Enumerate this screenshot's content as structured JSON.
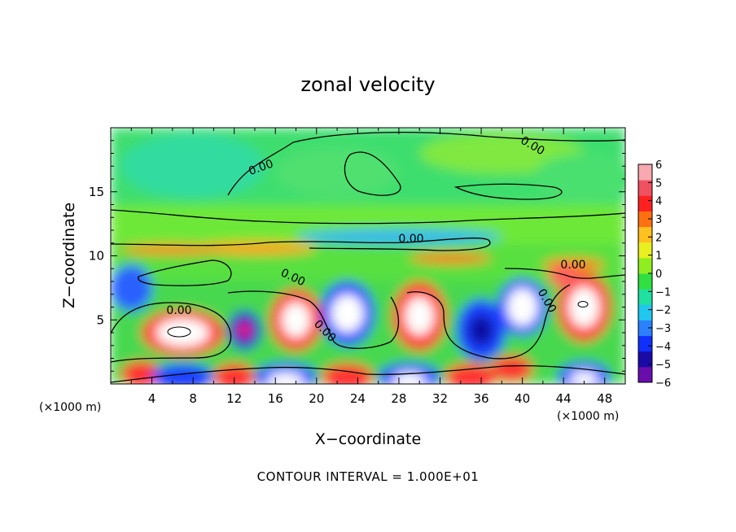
{
  "chart_data": {
    "type": "heatmap",
    "title": "zonal velocity",
    "xlabel": "X−coordinate",
    "ylabel": "Z−coordinate",
    "x_unit_left": "(×1000 m)",
    "x_unit_right": "(×1000 m)",
    "xlim": [
      0,
      50
    ],
    "ylim": [
      0,
      20
    ],
    "xticks": [
      "4",
      "8",
      "12",
      "16",
      "20",
      "24",
      "28",
      "32",
      "36",
      "40",
      "44",
      "48"
    ],
    "yticks": [
      "5",
      "10",
      "15"
    ],
    "colorbar": {
      "ticks": [
        "6",
        "5",
        "4",
        "3",
        "2",
        "1",
        "0",
        "−1",
        "−2",
        "−3",
        "−4",
        "−5",
        "−6"
      ],
      "range": [
        -6,
        6
      ],
      "colors": [
        "#6a0dad",
        "#1a0aa8",
        "#1030ff",
        "#2a80ff",
        "#20c8f0",
        "#20e0a0",
        "#30e040",
        "#90ee20",
        "#e8f020",
        "#ffc020",
        "#ff7010",
        "#ff2020",
        "#f05060",
        "#f8a8b0"
      ]
    },
    "contour_labels": [
      "0.00",
      "0.00",
      "0.00",
      "0.00",
      "0.00",
      "0.00",
      "0.00",
      "0.00"
    ],
    "grid": false,
    "footer": "CONTOUR INTERVAL = 1.000E+01"
  }
}
